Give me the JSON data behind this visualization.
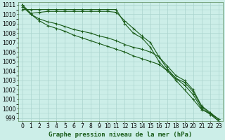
{
  "title": "Graphe pression niveau de la mer (hPa)",
  "bg_color": "#cceee8",
  "grid_color": "#aad4ce",
  "line_color": "#1a5c1a",
  "series": [
    [
      1010.5,
      1010.5,
      1010.5,
      1010.5,
      1010.5,
      1010.5,
      1010.5,
      1010.5,
      1010.5,
      1010.5,
      1010.5,
      1010.5,
      1009.0,
      1008.0,
      1007.5,
      1006.5,
      1005.0,
      1004.0,
      1003.0,
      1002.0,
      1001.0,
      999.9,
      999.5,
      998.7
    ],
    [
      1011.0,
      1010.1,
      1010.2,
      1010.3,
      1010.3,
      1010.3,
      1010.3,
      1010.3,
      1010.3,
      1010.3,
      1010.3,
      1010.2,
      1009.3,
      1008.5,
      1007.7,
      1007.0,
      1005.5,
      1004.2,
      1003.2,
      1002.5,
      1001.5,
      1000.0,
      999.4,
      998.7
    ],
    [
      1011.0,
      1010.0,
      1009.5,
      1009.2,
      1009.0,
      1008.7,
      1008.4,
      1008.2,
      1008.0,
      1007.7,
      1007.5,
      1007.2,
      1006.8,
      1006.5,
      1006.3,
      1006.0,
      1005.5,
      1004.5,
      1003.5,
      1003.0,
      1002.0,
      1000.3,
      999.6,
      998.9
    ],
    [
      1010.8,
      1010.0,
      1009.3,
      1008.8,
      1008.5,
      1008.2,
      1007.8,
      1007.5,
      1007.2,
      1006.9,
      1006.6,
      1006.3,
      1006.0,
      1005.6,
      1005.3,
      1005.0,
      1004.7,
      1004.0,
      1003.2,
      1002.8,
      1001.8,
      1000.2,
      999.5,
      998.9
    ]
  ],
  "xlim": [
    -0.5,
    23.5
  ],
  "ylim": [
    998.7,
    1011.3
  ],
  "yticks": [
    999,
    1000,
    1001,
    1002,
    1003,
    1004,
    1005,
    1006,
    1007,
    1008,
    1009,
    1010,
    1011
  ],
  "xticks": [
    0,
    1,
    2,
    3,
    4,
    5,
    6,
    7,
    8,
    9,
    10,
    11,
    12,
    13,
    14,
    15,
    16,
    17,
    18,
    19,
    20,
    21,
    22,
    23
  ],
  "tick_fontsize": 5.5,
  "ylabel_fontsize": 5.5,
  "title_fontsize": 6.5,
  "linewidth": 0.8,
  "markersize": 2.5
}
